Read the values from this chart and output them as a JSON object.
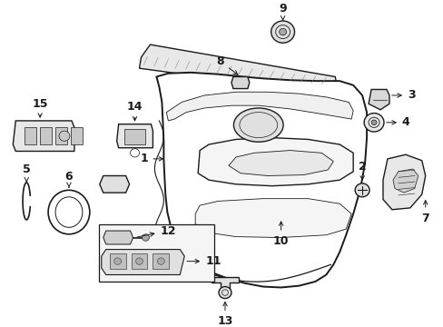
{
  "bg_color": "#ffffff",
  "fig_width": 4.89,
  "fig_height": 3.6,
  "dpi": 100,
  "line_color": "#1a1a1a",
  "lw_main": 1.0,
  "lw_thin": 0.6,
  "lw_thick": 1.4,
  "label_fontsize": 9,
  "arrow_fontsize": 8
}
